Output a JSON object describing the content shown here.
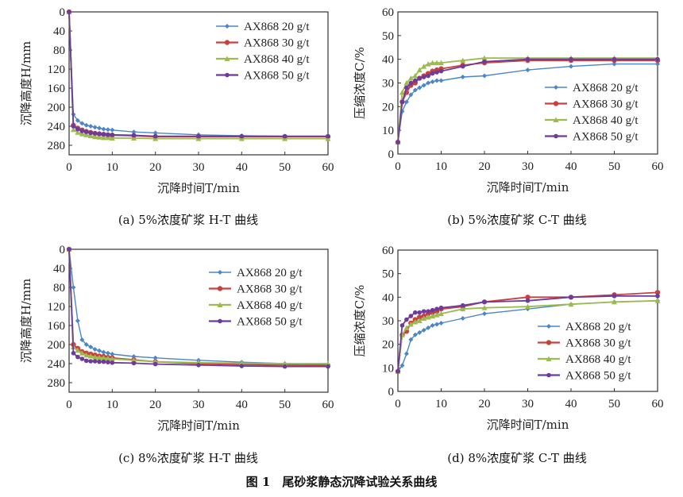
{
  "figure_title": "图 1　尾砂浆静态沉降试验关系曲线",
  "colors": {
    "20": "#4a86c8",
    "30": "#c8413f",
    "40": "#9bbb4f",
    "50": "#6d3b9b"
  },
  "chart_data": [
    {
      "id": "a",
      "type": "line",
      "caption": "(a) 5%浓度矿浆 H-T 曲线",
      "xlabel": "沉降时间T/min",
      "ylabel": "沉降高度H/mm",
      "xlim": [
        0,
        60
      ],
      "xticks": [
        0,
        10,
        20,
        30,
        40,
        50,
        60
      ],
      "ylim": [
        0,
        300
      ],
      "yticks": [
        0,
        40,
        80,
        120,
        160,
        200,
        240,
        280
      ],
      "y_reversed": true,
      "grid": false,
      "legend": "top-right",
      "x": [
        0,
        1,
        2,
        3,
        4,
        5,
        6,
        7,
        8,
        9,
        10,
        15,
        20,
        30,
        40,
        50,
        60
      ],
      "series": [
        {
          "name": "AX868 20 g/t",
          "values": [
            0,
            215,
            228,
            234,
            238,
            240,
            242,
            244,
            246,
            247,
            248,
            252,
            254,
            258,
            260,
            261,
            261
          ]
        },
        {
          "name": "AX868 30 g/t",
          "values": [
            0,
            238,
            244,
            248,
            251,
            253,
            255,
            256,
            257,
            258,
            259,
            260,
            262,
            262,
            262,
            262,
            262
          ]
        },
        {
          "name": "AX868 40 g/t",
          "values": [
            0,
            247,
            253,
            256,
            258,
            260,
            262,
            263,
            264,
            264,
            265,
            265,
            266,
            266,
            266,
            266,
            266
          ]
        },
        {
          "name": "AX868 50 g/t",
          "values": [
            0,
            240,
            246,
            250,
            252,
            254,
            255,
            256,
            257,
            258,
            258,
            259,
            261,
            261,
            261,
            261,
            261
          ]
        }
      ]
    },
    {
      "id": "b",
      "type": "line",
      "caption": "(b) 5%浓度矿浆 C-T 曲线",
      "xlabel": "沉降时间T/min",
      "ylabel": "压缩浓度C/%",
      "xlim": [
        0,
        60
      ],
      "xticks": [
        0,
        10,
        20,
        30,
        40,
        50,
        60
      ],
      "ylim": [
        0,
        60
      ],
      "yticks": [
        0,
        10,
        20,
        30,
        40,
        50,
        60
      ],
      "y_reversed": false,
      "grid": false,
      "legend": "lower-right",
      "x": [
        0,
        1,
        2,
        3,
        4,
        5,
        6,
        7,
        8,
        9,
        10,
        15,
        20,
        30,
        40,
        50,
        60
      ],
      "series": [
        {
          "name": "AX868 20 g/t",
          "values": [
            5,
            18,
            22,
            25,
            27,
            28,
            29,
            30,
            30.5,
            31,
            31,
            32.5,
            33,
            35.5,
            37,
            38,
            38
          ]
        },
        {
          "name": "AX868 30 g/t",
          "values": [
            5,
            22,
            26,
            29,
            30,
            32,
            33,
            34,
            35,
            35.5,
            36,
            37.5,
            38.5,
            39.5,
            39.5,
            39.5,
            39.5
          ]
        },
        {
          "name": "AX868 40 g/t",
          "values": [
            5,
            26,
            30,
            32,
            33,
            35.5,
            37,
            38,
            38.5,
            38.5,
            38.5,
            39.5,
            40.5,
            40.5,
            40.5,
            40.5,
            40.5
          ]
        },
        {
          "name": "AX868 50 g/t",
          "values": [
            5,
            22,
            28,
            30,
            31,
            32,
            32.5,
            33,
            34,
            34.5,
            35,
            37,
            39,
            40,
            40,
            40,
            40
          ]
        }
      ]
    },
    {
      "id": "c",
      "type": "line",
      "caption": "(c) 8%浓度矿浆 H-T 曲线",
      "xlabel": "沉降时间T/min",
      "ylabel": "沉降高度H/mm",
      "xlim": [
        0,
        60
      ],
      "xticks": [
        0,
        10,
        20,
        30,
        40,
        50,
        60
      ],
      "ylim": [
        0,
        300
      ],
      "yticks": [
        0,
        40,
        80,
        120,
        160,
        200,
        240,
        280
      ],
      "y_reversed": true,
      "grid": false,
      "legend": "top-right",
      "x": [
        0,
        1,
        2,
        3,
        4,
        5,
        6,
        7,
        8,
        9,
        10,
        15,
        20,
        30,
        40,
        50,
        60
      ],
      "series": [
        {
          "name": "AX868 20 g/t",
          "values": [
            0,
            80,
            150,
            190,
            200,
            205,
            210,
            213,
            216,
            218,
            220,
            225,
            228,
            233,
            237,
            240,
            242
          ]
        },
        {
          "name": "AX868 30 g/t",
          "values": [
            0,
            200,
            208,
            215,
            218,
            220,
            222,
            224,
            225,
            227,
            228,
            232,
            236,
            240,
            242,
            243,
            244
          ]
        },
        {
          "name": "AX868 40 g/t",
          "values": [
            0,
            205,
            212,
            218,
            222,
            224,
            226,
            227,
            228,
            229,
            230,
            233,
            236,
            238,
            239,
            240,
            240
          ]
        },
        {
          "name": "AX868 50 g/t",
          "values": [
            0,
            218,
            226,
            230,
            234,
            235,
            235,
            236,
            236,
            237,
            238,
            239,
            241,
            243,
            245,
            246,
            246
          ]
        }
      ]
    },
    {
      "id": "d",
      "type": "line",
      "caption": "(d) 8%浓度矿浆 C-T 曲线",
      "xlabel": "沉降时间T/min",
      "ylabel": "压缩浓度C/%",
      "xlim": [
        0,
        60
      ],
      "xticks": [
        0,
        10,
        20,
        30,
        40,
        50,
        60
      ],
      "ylim": [
        0,
        60
      ],
      "yticks": [
        0,
        10,
        20,
        30,
        40,
        50,
        60
      ],
      "y_reversed": false,
      "grid": false,
      "legend": "lower-right",
      "x": [
        0,
        1,
        2,
        3,
        4,
        5,
        6,
        7,
        8,
        9,
        10,
        15,
        20,
        30,
        40,
        50,
        60
      ],
      "series": [
        {
          "name": "AX868 20 g/t",
          "values": [
            8.5,
            11,
            16,
            22,
            24,
            25,
            26,
            27,
            28,
            28.5,
            29,
            31,
            33,
            35,
            37,
            38,
            38.5
          ]
        },
        {
          "name": "AX868 30 g/t",
          "values": [
            8.5,
            24,
            25.5,
            29,
            30.5,
            31.5,
            32,
            33,
            33.5,
            34,
            35,
            36,
            38,
            40,
            40,
            41,
            42
          ]
        },
        {
          "name": "AX868 40 g/t",
          "values": [
            8.5,
            24,
            27,
            28.5,
            29.5,
            30,
            31,
            31.5,
            32,
            32.5,
            33,
            35,
            35.5,
            36,
            37,
            38,
            38.5
          ]
        },
        {
          "name": "AX868 50 g/t",
          "values": [
            8.5,
            28,
            30.5,
            32,
            33.5,
            33.5,
            34,
            34,
            34.5,
            35,
            35.5,
            36.5,
            38,
            38.5,
            40,
            40.5,
            40.5
          ]
        }
      ]
    }
  ]
}
